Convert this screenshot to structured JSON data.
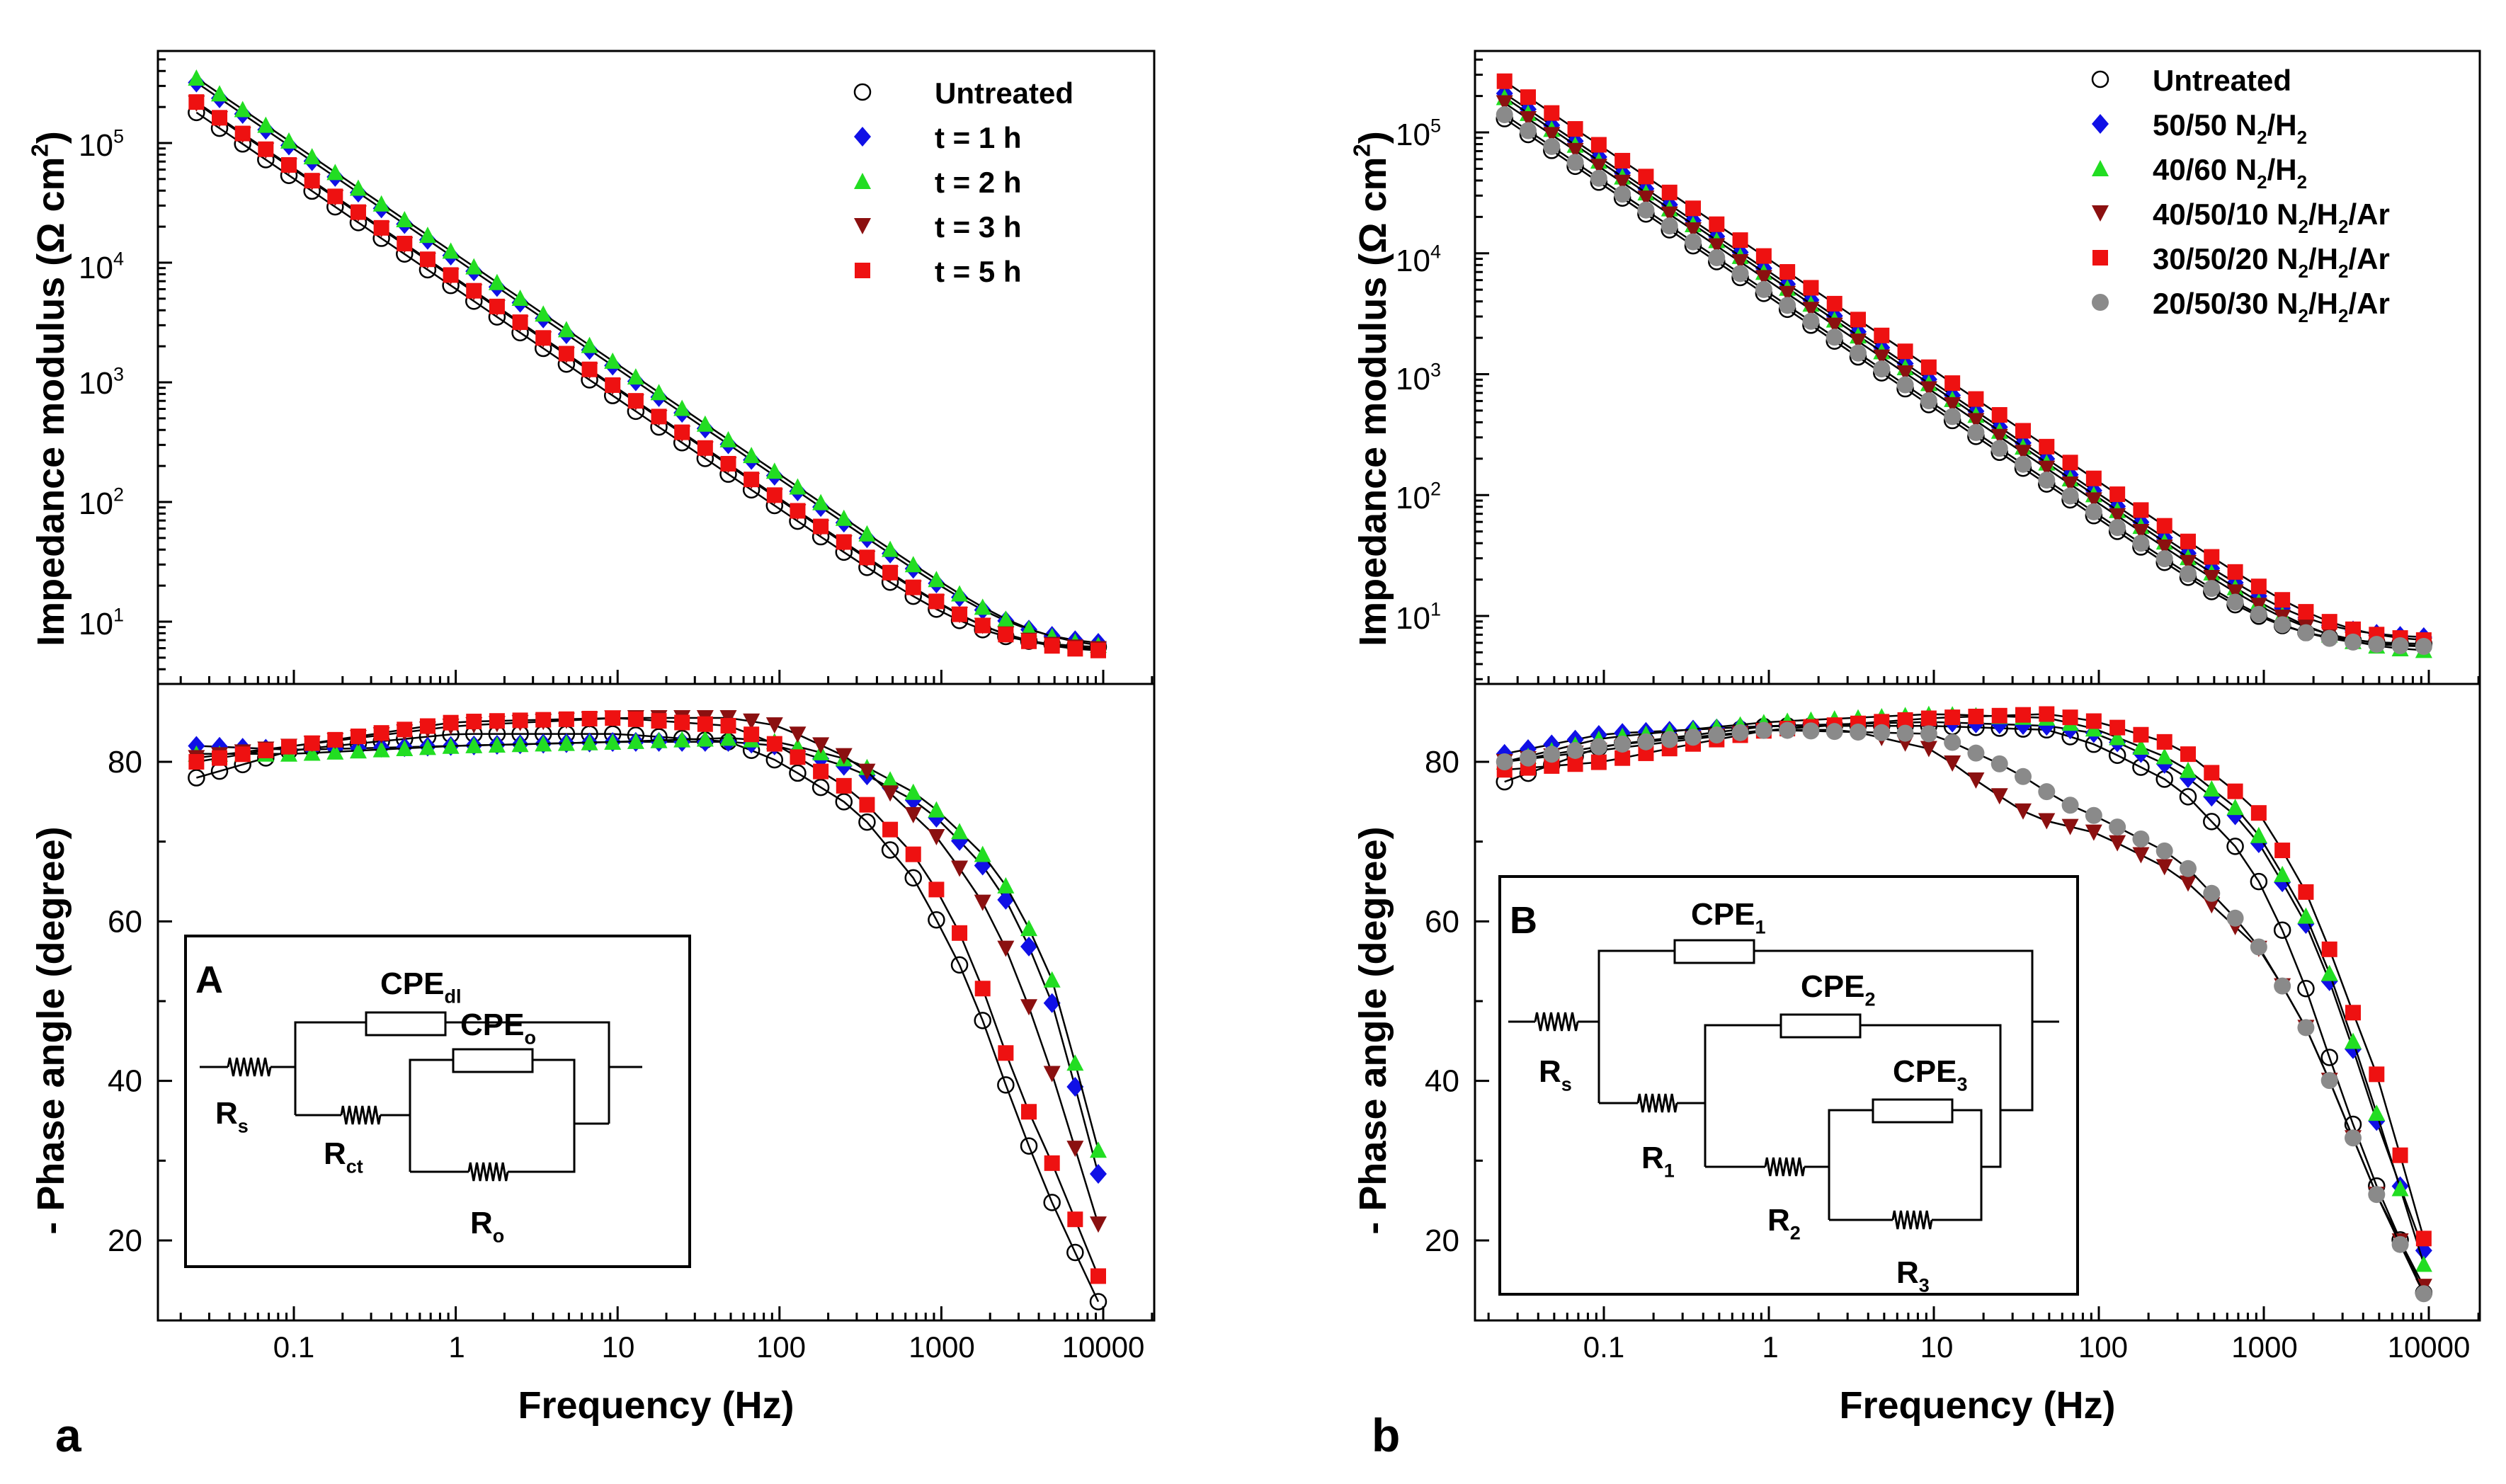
{
  "chart_data": [
    {
      "panel_label": "a",
      "type": "line",
      "xscale": "log",
      "xlabel": "Frequency (Hz)",
      "x_ticks": [
        "0.1",
        "1",
        "10",
        "100",
        "1000",
        "10000"
      ],
      "xlim": [
        0.02,
        15000
      ],
      "top": {
        "ylabel": "Impedance modulus (Ω cm²)",
        "ylabel_parts": [
          "Impedance modulus (Ω cm",
          "2",
          ")"
        ],
        "yscale": "log",
        "ylim": [
          3.5,
          500000
        ],
        "y_ticks": [
          {
            "base": "10",
            "exp": "1"
          },
          {
            "base": "10",
            "exp": "2"
          },
          {
            "base": "10",
            "exp": "3"
          },
          {
            "base": "10",
            "exp": "4"
          },
          {
            "base": "10",
            "exp": "5"
          }
        ],
        "legend_position": "top-right",
        "series": [
          {
            "name": "Untreated",
            "marker": "open-circle",
            "color": "#000000",
            "modulus_at_0.025Hz": 180000,
            "high_freq_limit": 6
          },
          {
            "name": "t = 1 h",
            "marker": "diamond",
            "color": "#1010e6",
            "modulus_at_0.025Hz": 320000,
            "high_freq_limit": 6.2
          },
          {
            "name": "t = 2 h",
            "marker": "triangle-up",
            "color": "#22dd22",
            "modulus_at_0.025Hz": 350000,
            "high_freq_limit": 5.8
          },
          {
            "name": "t = 3 h",
            "marker": "triangle-down",
            "color": "#8b1010",
            "modulus_at_0.025Hz": 215000,
            "high_freq_limit": 5.7
          },
          {
            "name": "t = 5 h",
            "marker": "square",
            "color": "#ee1111",
            "modulus_at_0.025Hz": 220000,
            "high_freq_limit": 5.5
          }
        ]
      },
      "bottom": {
        "ylabel": "- Phase angle (degree)",
        "ylim": [
          10,
          90
        ],
        "y_ticks": [
          "20",
          "40",
          "60",
          "80"
        ],
        "series": [
          {
            "name": "Untreated",
            "phase_points": [
              [
                0.025,
                78
              ],
              [
                0.1,
                81.5
              ],
              [
                1,
                83.5
              ],
              [
                10,
                83.5
              ],
              [
                50,
                82.5
              ],
              [
                100,
                80
              ],
              [
                300,
                74
              ],
              [
                700,
                65
              ],
              [
                1000,
                59
              ],
              [
                1500,
                52
              ],
              [
                2000,
                45
              ],
              [
                3000,
                35
              ],
              [
                5000,
                24
              ],
              [
                10000,
                11
              ]
            ]
          },
          {
            "name": "t = 1 h",
            "phase_points": [
              [
                0.025,
                82
              ],
              [
                0.1,
                81.5
              ],
              [
                1,
                82
              ],
              [
                10,
                82.5
              ],
              [
                50,
                82.5
              ],
              [
                100,
                82
              ],
              [
                300,
                79
              ],
              [
                700,
                75
              ],
              [
                1000,
                72.5
              ],
              [
                2000,
                66
              ],
              [
                3000,
                60
              ],
              [
                5000,
                49
              ],
              [
                10000,
                26
              ]
            ]
          },
          {
            "name": "t = 2 h",
            "phase_points": [
              [
                0.025,
                81
              ],
              [
                0.1,
                81
              ],
              [
                1,
                82
              ],
              [
                10,
                82.5
              ],
              [
                50,
                83
              ],
              [
                100,
                82.5
              ],
              [
                300,
                80
              ],
              [
                700,
                76
              ],
              [
                1000,
                73.5
              ],
              [
                2000,
                67.5
              ],
              [
                3000,
                62
              ],
              [
                5000,
                52
              ],
              [
                10000,
                29
              ]
            ]
          },
          {
            "name": "t = 3 h",
            "phase_points": [
              [
                0.025,
                80.5
              ],
              [
                0.1,
                82
              ],
              [
                1,
                84.5
              ],
              [
                10,
                85.5
              ],
              [
                50,
                85.5
              ],
              [
                100,
                84.5
              ],
              [
                300,
                80
              ],
              [
                700,
                73
              ],
              [
                1000,
                70
              ],
              [
                2000,
                61
              ],
              [
                3000,
                53
              ],
              [
                5000,
                40
              ],
              [
                10000,
                20
              ]
            ]
          },
          {
            "name": "t = 5 h",
            "phase_points": [
              [
                0.025,
                80
              ],
              [
                0.1,
                82
              ],
              [
                1,
                85
              ],
              [
                10,
                85.5
              ],
              [
                50,
                84.5
              ],
              [
                100,
                82
              ],
              [
                300,
                76
              ],
              [
                700,
                68
              ],
              [
                1000,
                63
              ],
              [
                1500,
                56
              ],
              [
                2000,
                49
              ],
              [
                3000,
                39
              ],
              [
                5000,
                29
              ],
              [
                10000,
                14
              ]
            ]
          }
        ]
      },
      "inset": {
        "label": "A",
        "components": [
          "CPE",
          "CPE",
          "R",
          "R",
          "R"
        ],
        "labels": [
          {
            "base": "CPE",
            "sub": "dl"
          },
          {
            "base": "CPE",
            "sub": "o"
          },
          {
            "base": "R",
            "sub": "s"
          },
          {
            "base": "R",
            "sub": "ct"
          },
          {
            "base": "R",
            "sub": "o"
          }
        ]
      }
    },
    {
      "panel_label": "b",
      "type": "line",
      "xscale": "log",
      "xlabel": "Frequency (Hz)",
      "x_ticks": [
        "0.1",
        "1",
        "10",
        "100",
        "1000",
        "10000"
      ],
      "xlim": [
        0.02,
        15000
      ],
      "top": {
        "ylabel": "Impedance modulus (Ω cm²)",
        "ylabel_parts": [
          "Impedance modulus (Ω cm",
          "2",
          ")"
        ],
        "yscale": "log",
        "ylim": [
          3.5,
          500000
        ],
        "y_ticks": [
          {
            "base": "10",
            "exp": "1"
          },
          {
            "base": "10",
            "exp": "2"
          },
          {
            "base": "10",
            "exp": "3"
          },
          {
            "base": "10",
            "exp": "4"
          },
          {
            "base": "10",
            "exp": "5"
          }
        ],
        "legend_position": "top-right",
        "series": [
          {
            "name": "Untreated",
            "legend_parts": [
              "Untreated"
            ],
            "marker": "open-circle",
            "color": "#000000",
            "modulus_at_0.025Hz": 130000,
            "high_freq_limit": 5.8
          },
          {
            "name": "50/50 N2/H2",
            "legend_parts": [
              "50/50 N",
              "2",
              "/H",
              "2"
            ],
            "marker": "diamond",
            "color": "#1010e6",
            "modulus_at_0.025Hz": 210000,
            "high_freq_limit": 6.5
          },
          {
            "name": "40/60 N2/H2",
            "legend_parts": [
              "40/60 N",
              "2",
              "/H",
              "2"
            ],
            "marker": "triangle-up",
            "color": "#22dd22",
            "modulus_at_0.025Hz": 195000,
            "high_freq_limit": 5.0
          },
          {
            "name": "40/50/10 N2/H2/Ar",
            "legend_parts": [
              "40/50/10 N",
              "2",
              "/H",
              "2",
              "/Ar"
            ],
            "marker": "triangle-down",
            "color": "#8b1010",
            "modulus_at_0.025Hz": 175000,
            "high_freq_limit": 5.5
          },
          {
            "name": "30/50/20 N2/H2/Ar",
            "legend_parts": [
              "30/50/20 N",
              "2",
              "/H",
              "2",
              "/Ar"
            ],
            "marker": "square",
            "color": "#ee1111",
            "modulus_at_0.025Hz": 265000,
            "high_freq_limit": 6.0
          },
          {
            "name": "20/50/30 N2/H2/Ar",
            "legend_parts": [
              "20/50/30 N",
              "2",
              "/H",
              "2",
              "/Ar"
            ],
            "marker": "filled-circle",
            "color": "#8a8a8a",
            "modulus_at_0.025Hz": 140000,
            "high_freq_limit": 5.5
          }
        ]
      },
      "bottom": {
        "ylabel": "- Phase angle (degree)",
        "ylim": [
          10,
          90
        ],
        "y_ticks": [
          "20",
          "40",
          "60",
          "80"
        ],
        "series": [
          {
            "name": "Untreated",
            "phase_points": [
              [
                0.025,
                77.5
              ],
              [
                0.1,
                82
              ],
              [
                1,
                84.5
              ],
              [
                10,
                84.5
              ],
              [
                50,
                84
              ],
              [
                100,
                82
              ],
              [
                300,
                77
              ],
              [
                700,
                69
              ],
              [
                1000,
                64
              ],
              [
                1500,
                56
              ],
              [
                2000,
                49
              ],
              [
                3000,
                38
              ],
              [
                5000,
                26
              ],
              [
                10000,
                12
              ]
            ]
          },
          {
            "name": "50/50 N2/H2",
            "phase_points": [
              [
                0.025,
                81
              ],
              [
                0.1,
                83.5
              ],
              [
                1,
                84.5
              ],
              [
                10,
                85
              ],
              [
                50,
                84.5
              ],
              [
                100,
                83.5
              ],
              [
                300,
                79
              ],
              [
                700,
                73
              ],
              [
                1000,
                69
              ],
              [
                2000,
                58
              ],
              [
                3000,
                48
              ],
              [
                5000,
                34
              ],
              [
                10000,
                17
              ]
            ]
          },
          {
            "name": "40/60 N2/H2",
            "phase_points": [
              [
                0.025,
                80
              ],
              [
                0.1,
                83
              ],
              [
                1,
                85
              ],
              [
                10,
                86
              ],
              [
                50,
                85.5
              ],
              [
                100,
                84
              ],
              [
                300,
                80
              ],
              [
                700,
                74
              ],
              [
                1000,
                70
              ],
              [
                2000,
                59
              ],
              [
                3000,
                49
              ],
              [
                5000,
                35
              ],
              [
                10000,
                15
              ]
            ]
          },
          {
            "name": "40/50/10 N2/H2/Ar",
            "phase_points": [
              [
                0.025,
                80
              ],
              [
                0.1,
                81.5
              ],
              [
                1,
                84
              ],
              [
                3,
                84
              ],
              [
                10,
                81.5
              ],
              [
                20,
                77
              ],
              [
                40,
                73
              ],
              [
                100,
                71
              ],
              [
                300,
                66
              ],
              [
                1000,
                56
              ],
              [
                2000,
                45
              ],
              [
                3000,
                36
              ],
              [
                5000,
                25
              ],
              [
                10000,
                13
              ]
            ]
          },
          {
            "name": "30/50/20 N2/H2/Ar",
            "phase_points": [
              [
                0.025,
                79
              ],
              [
                0.05,
                79.5
              ],
              [
                0.1,
                80
              ],
              [
                0.3,
                82
              ],
              [
                1,
                84
              ],
              [
                10,
                85.5
              ],
              [
                50,
                86
              ],
              [
                100,
                85
              ],
              [
                300,
                82
              ],
              [
                700,
                76
              ],
              [
                1000,
                73
              ],
              [
                2000,
                62
              ],
              [
                3000,
                52
              ],
              [
                5000,
                40
              ],
              [
                10000,
                18
              ]
            ]
          },
          {
            "name": "20/50/30 N2/H2/Ar",
            "phase_points": [
              [
                0.025,
                80
              ],
              [
                0.1,
                82
              ],
              [
                1,
                84
              ],
              [
                10,
                83.5
              ],
              [
                30,
                79
              ],
              [
                60,
                75
              ],
              [
                100,
                73
              ],
              [
                300,
                68
              ],
              [
                700,
                60
              ],
              [
                1000,
                56
              ],
              [
                2000,
                45
              ],
              [
                3000,
                36
              ],
              [
                5000,
                25
              ],
              [
                10000,
                12
              ]
            ]
          }
        ]
      },
      "inset": {
        "label": "B",
        "components": [
          "CPE",
          "CPE",
          "CPE",
          "R",
          "R",
          "R",
          "R"
        ],
        "labels": [
          {
            "base": "CPE",
            "sub": "1"
          },
          {
            "base": "CPE",
            "sub": "2"
          },
          {
            "base": "CPE",
            "sub": "3"
          },
          {
            "base": "R",
            "sub": "s"
          },
          {
            "base": "R",
            "sub": "1"
          },
          {
            "base": "R",
            "sub": "2"
          },
          {
            "base": "R",
            "sub": "3"
          }
        ]
      }
    }
  ]
}
